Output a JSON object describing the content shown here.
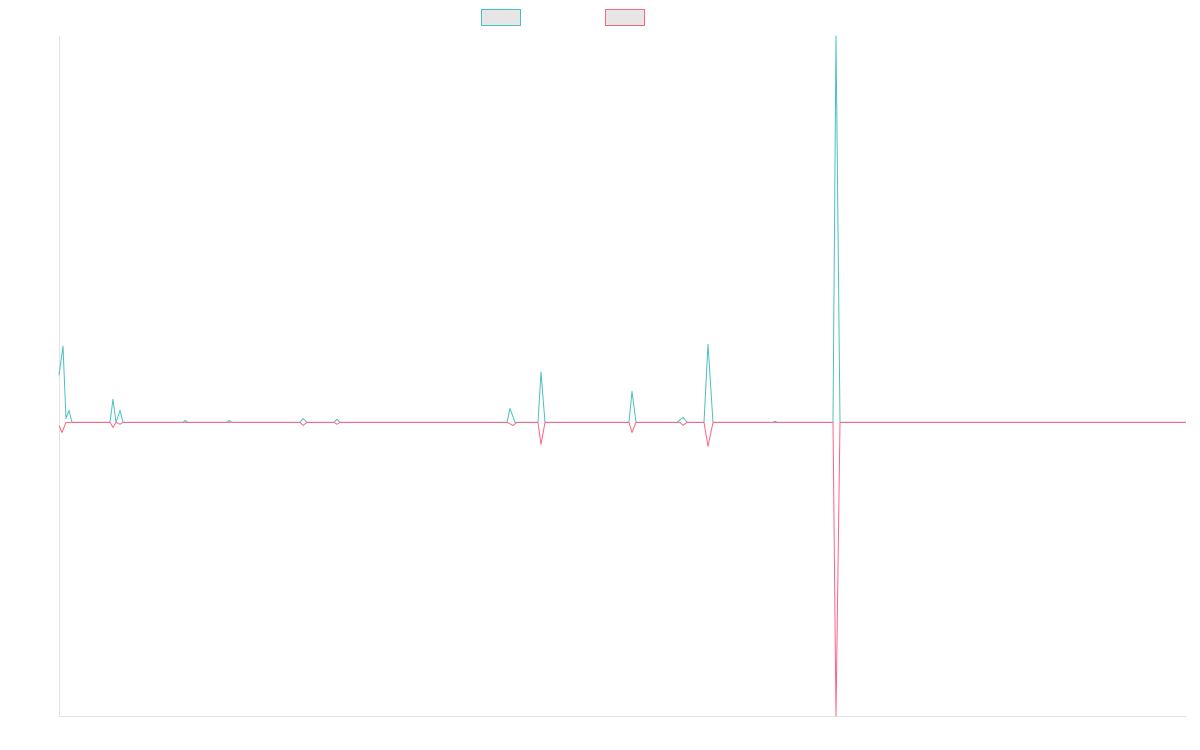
{
  "chart_data": {
    "type": "line",
    "xlim": [
      0,
      1127
    ],
    "ylim": [
      -76,
      100
    ],
    "series": [
      {
        "color": "#4bc0c0",
        "x": [
          0,
          4,
          7,
          10,
          13,
          51,
          54,
          57,
          61,
          64,
          124,
          126,
          129,
          168,
          170,
          173,
          241,
          244,
          248,
          275,
          278,
          281,
          448,
          451,
          456,
          479,
          482,
          486,
          570,
          573,
          577,
          618,
          624,
          628,
          645,
          649,
          654,
          714,
          716,
          718,
          774,
          777,
          781,
          1127
        ],
        "values": [
          12.2,
          19.7,
          1,
          3.1,
          0,
          0,
          6,
          0,
          3.1,
          0,
          0,
          0.5,
          0,
          0,
          0.5,
          0,
          0,
          1,
          0,
          0,
          0.8,
          0,
          0,
          3.6,
          0,
          0,
          13,
          0,
          0,
          8,
          0,
          0,
          1.3,
          0,
          0,
          20.2,
          0,
          0,
          0.3,
          0,
          0,
          100,
          0,
          0
        ]
      },
      {
        "color": "#ff6384",
        "x": [
          0,
          3,
          7,
          11,
          51,
          54,
          57,
          61,
          64,
          241,
          244,
          248,
          275,
          278,
          281,
          448,
          454,
          458,
          479,
          482,
          486,
          570,
          573,
          577,
          621,
          624,
          628,
          645,
          649,
          654,
          774,
          777,
          781,
          1127
        ],
        "values": [
          -0.8,
          -2.6,
          0,
          0,
          0,
          -1.3,
          0,
          -0.5,
          0,
          0,
          -0.8,
          0,
          0,
          -0.5,
          0,
          0,
          -0.8,
          0,
          0,
          -5.7,
          0,
          0,
          -2.6,
          0,
          0,
          -0.8,
          0,
          0,
          -6.2,
          0,
          0,
          -76,
          0,
          0
        ]
      }
    ]
  }
}
